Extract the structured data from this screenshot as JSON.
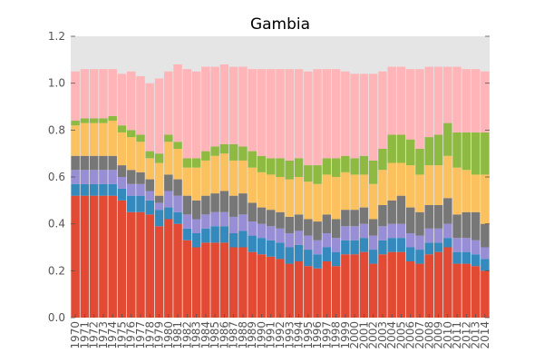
{
  "chart_data": {
    "type": "bar",
    "stacked": true,
    "title": "Gambia",
    "xlabel": "",
    "ylabel": "",
    "ylim": [
      0,
      1.2
    ],
    "yticks": [
      "0.0",
      "0.2",
      "0.4",
      "0.6",
      "0.8",
      "1.0",
      "1.2"
    ],
    "grid": false,
    "background": "#e5e5e5",
    "categories": [
      "1970",
      "1971",
      "1972",
      "1973",
      "1974",
      "1975",
      "1976",
      "1977",
      "1978",
      "1979",
      "1980",
      "1981",
      "1982",
      "1983",
      "1984",
      "1985",
      "1986",
      "1987",
      "1988",
      "1989",
      "1990",
      "1991",
      "1992",
      "1993",
      "1994",
      "1995",
      "1996",
      "1997",
      "1998",
      "1999",
      "2000",
      "2001",
      "2002",
      "2003",
      "2004",
      "2005",
      "2006",
      "2007",
      "2008",
      "2009",
      "2010",
      "2011",
      "2012",
      "2013",
      "2014"
    ],
    "series": [
      {
        "color": "#E24A33",
        "values": [
          0.52,
          0.52,
          0.52,
          0.52,
          0.52,
          0.5,
          0.45,
          0.45,
          0.44,
          0.39,
          0.42,
          0.4,
          0.33,
          0.3,
          0.32,
          0.32,
          0.32,
          0.3,
          0.3,
          0.28,
          0.27,
          0.26,
          0.25,
          0.23,
          0.24,
          0.22,
          0.21,
          0.24,
          0.22,
          0.27,
          0.27,
          0.28,
          0.23,
          0.27,
          0.28,
          0.28,
          0.24,
          0.23,
          0.27,
          0.28,
          0.3,
          0.23,
          0.23,
          0.22,
          0.2
        ]
      },
      {
        "color": "#348ABD",
        "values": [
          0.05,
          0.05,
          0.05,
          0.05,
          0.05,
          0.05,
          0.07,
          0.07,
          0.06,
          0.07,
          0.05,
          0.05,
          0.05,
          0.06,
          0.06,
          0.07,
          0.07,
          0.06,
          0.07,
          0.07,
          0.07,
          0.07,
          0.07,
          0.07,
          0.07,
          0.07,
          0.06,
          0.06,
          0.06,
          0.06,
          0.06,
          0.06,
          0.06,
          0.06,
          0.06,
          0.06,
          0.06,
          0.06,
          0.05,
          0.04,
          0.04,
          0.05,
          0.05,
          0.05,
          0.05
        ]
      },
      {
        "color": "#988ED5",
        "values": [
          0.06,
          0.06,
          0.06,
          0.06,
          0.06,
          0.05,
          0.05,
          0.05,
          0.04,
          0.03,
          0.07,
          0.07,
          0.06,
          0.06,
          0.06,
          0.06,
          0.06,
          0.07,
          0.07,
          0.06,
          0.06,
          0.06,
          0.06,
          0.06,
          0.06,
          0.06,
          0.06,
          0.06,
          0.06,
          0.06,
          0.06,
          0.06,
          0.06,
          0.06,
          0.06,
          0.06,
          0.06,
          0.06,
          0.06,
          0.06,
          0.06,
          0.06,
          0.06,
          0.06,
          0.05
        ]
      },
      {
        "color": "#777777",
        "values": [
          0.06,
          0.06,
          0.06,
          0.06,
          0.06,
          0.05,
          0.06,
          0.05,
          0.05,
          0.03,
          0.07,
          0.07,
          0.08,
          0.08,
          0.08,
          0.08,
          0.09,
          0.09,
          0.09,
          0.08,
          0.07,
          0.07,
          0.07,
          0.07,
          0.07,
          0.07,
          0.08,
          0.08,
          0.08,
          0.07,
          0.07,
          0.07,
          0.07,
          0.09,
          0.1,
          0.12,
          0.11,
          0.1,
          0.1,
          0.1,
          0.11,
          0.1,
          0.11,
          0.12,
          0.1
        ]
      },
      {
        "color": "#FBC15E",
        "values": [
          0.13,
          0.14,
          0.14,
          0.14,
          0.15,
          0.14,
          0.14,
          0.13,
          0.09,
          0.14,
          0.14,
          0.13,
          0.12,
          0.14,
          0.15,
          0.16,
          0.16,
          0.15,
          0.14,
          0.15,
          0.15,
          0.15,
          0.15,
          0.16,
          0.16,
          0.16,
          0.16,
          0.17,
          0.18,
          0.16,
          0.15,
          0.14,
          0.15,
          0.15,
          0.16,
          0.14,
          0.18,
          0.16,
          0.17,
          0.17,
          0.18,
          0.2,
          0.18,
          0.16,
          0.21
        ]
      },
      {
        "color": "#8EBA42",
        "values": [
          0.02,
          0.02,
          0.02,
          0.02,
          0.02,
          0.03,
          0.03,
          0.03,
          0.03,
          0.04,
          0.03,
          0.03,
          0.04,
          0.04,
          0.04,
          0.04,
          0.04,
          0.07,
          0.06,
          0.07,
          0.07,
          0.07,
          0.08,
          0.08,
          0.08,
          0.07,
          0.08,
          0.07,
          0.08,
          0.07,
          0.07,
          0.08,
          0.1,
          0.09,
          0.12,
          0.12,
          0.11,
          0.11,
          0.12,
          0.13,
          0.14,
          0.15,
          0.16,
          0.18,
          0.18
        ]
      },
      {
        "color": "#FFB5B8",
        "values": [
          0.21,
          0.21,
          0.21,
          0.21,
          0.2,
          0.22,
          0.25,
          0.25,
          0.29,
          0.32,
          0.27,
          0.33,
          0.38,
          0.37,
          0.36,
          0.34,
          0.34,
          0.33,
          0.34,
          0.35,
          0.37,
          0.38,
          0.38,
          0.39,
          0.38,
          0.4,
          0.41,
          0.38,
          0.38,
          0.36,
          0.36,
          0.35,
          0.37,
          0.33,
          0.29,
          0.29,
          0.3,
          0.34,
          0.3,
          0.29,
          0.24,
          0.28,
          0.27,
          0.27,
          0.26
        ]
      }
    ]
  }
}
